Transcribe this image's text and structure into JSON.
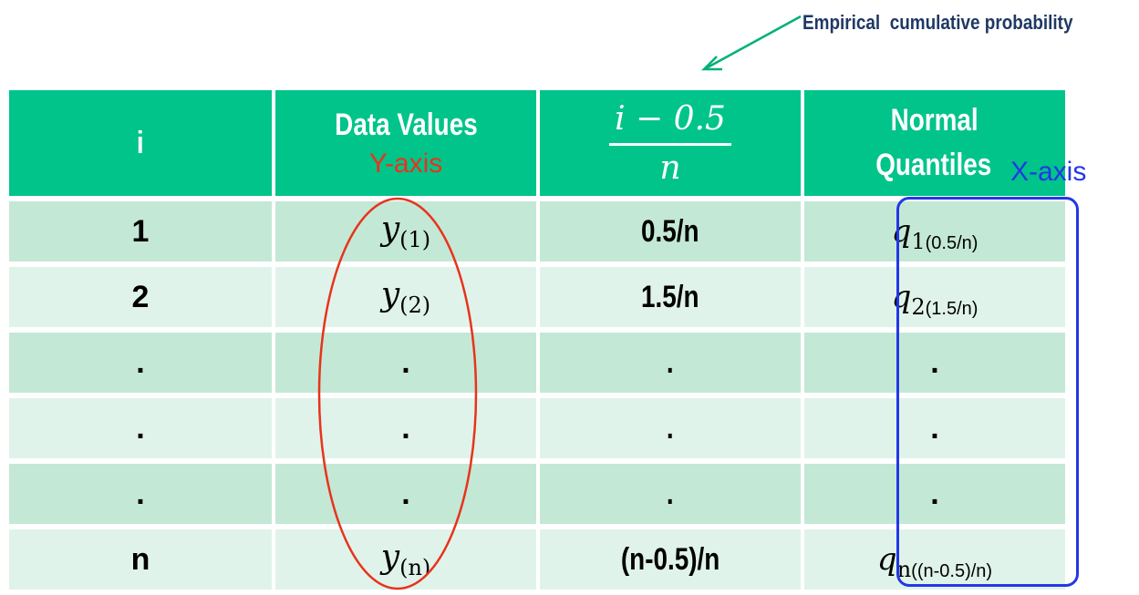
{
  "annotation": {
    "text": "Empirical  cumulative probability",
    "color": "#1f3864"
  },
  "colors": {
    "header": "#00c48a",
    "row_dark": "#c4e8d6",
    "row_light": "#e0f3ea",
    "y_axis": "#e8331c",
    "x_axis": "#2337e6"
  },
  "header": {
    "col_i": "i",
    "col_data": "Data Values",
    "y_axis_label": "Y-axis",
    "frac_numerator": "i − 0.5",
    "frac_denominator": "n",
    "col_normal_line1": "Normal",
    "col_normal_line2": "Quantiles",
    "x_axis_label": "X-axis"
  },
  "rows": [
    {
      "i": "1",
      "y_base": "y",
      "y_sub": "(1)",
      "prob": "0.5/n",
      "q_base": "q",
      "q_sub1": "1",
      "q_sub2": "(0.5/n)"
    },
    {
      "i": "2",
      "y_base": "y",
      "y_sub": "(2)",
      "prob": "1.5/n",
      "q_base": "q",
      "q_sub1": "2",
      "q_sub2": "(1.5/n)"
    },
    {
      "i": ".",
      "y_base": ".",
      "y_sub": "",
      "prob": ".",
      "q_base": ".",
      "q_sub1": "",
      "q_sub2": ""
    },
    {
      "i": ".",
      "y_base": ".",
      "y_sub": "",
      "prob": ".",
      "q_base": ".",
      "q_sub1": "",
      "q_sub2": ""
    },
    {
      "i": ".",
      "y_base": ".",
      "y_sub": "",
      "prob": ".",
      "q_base": ".",
      "q_sub1": "",
      "q_sub2": ""
    },
    {
      "i": "n",
      "y_base": "y",
      "y_sub": "(n)",
      "prob": "(n-0.5)/n",
      "q_base": "q",
      "q_sub1": "n",
      "q_sub2": "((n-0.5)/n)"
    }
  ]
}
